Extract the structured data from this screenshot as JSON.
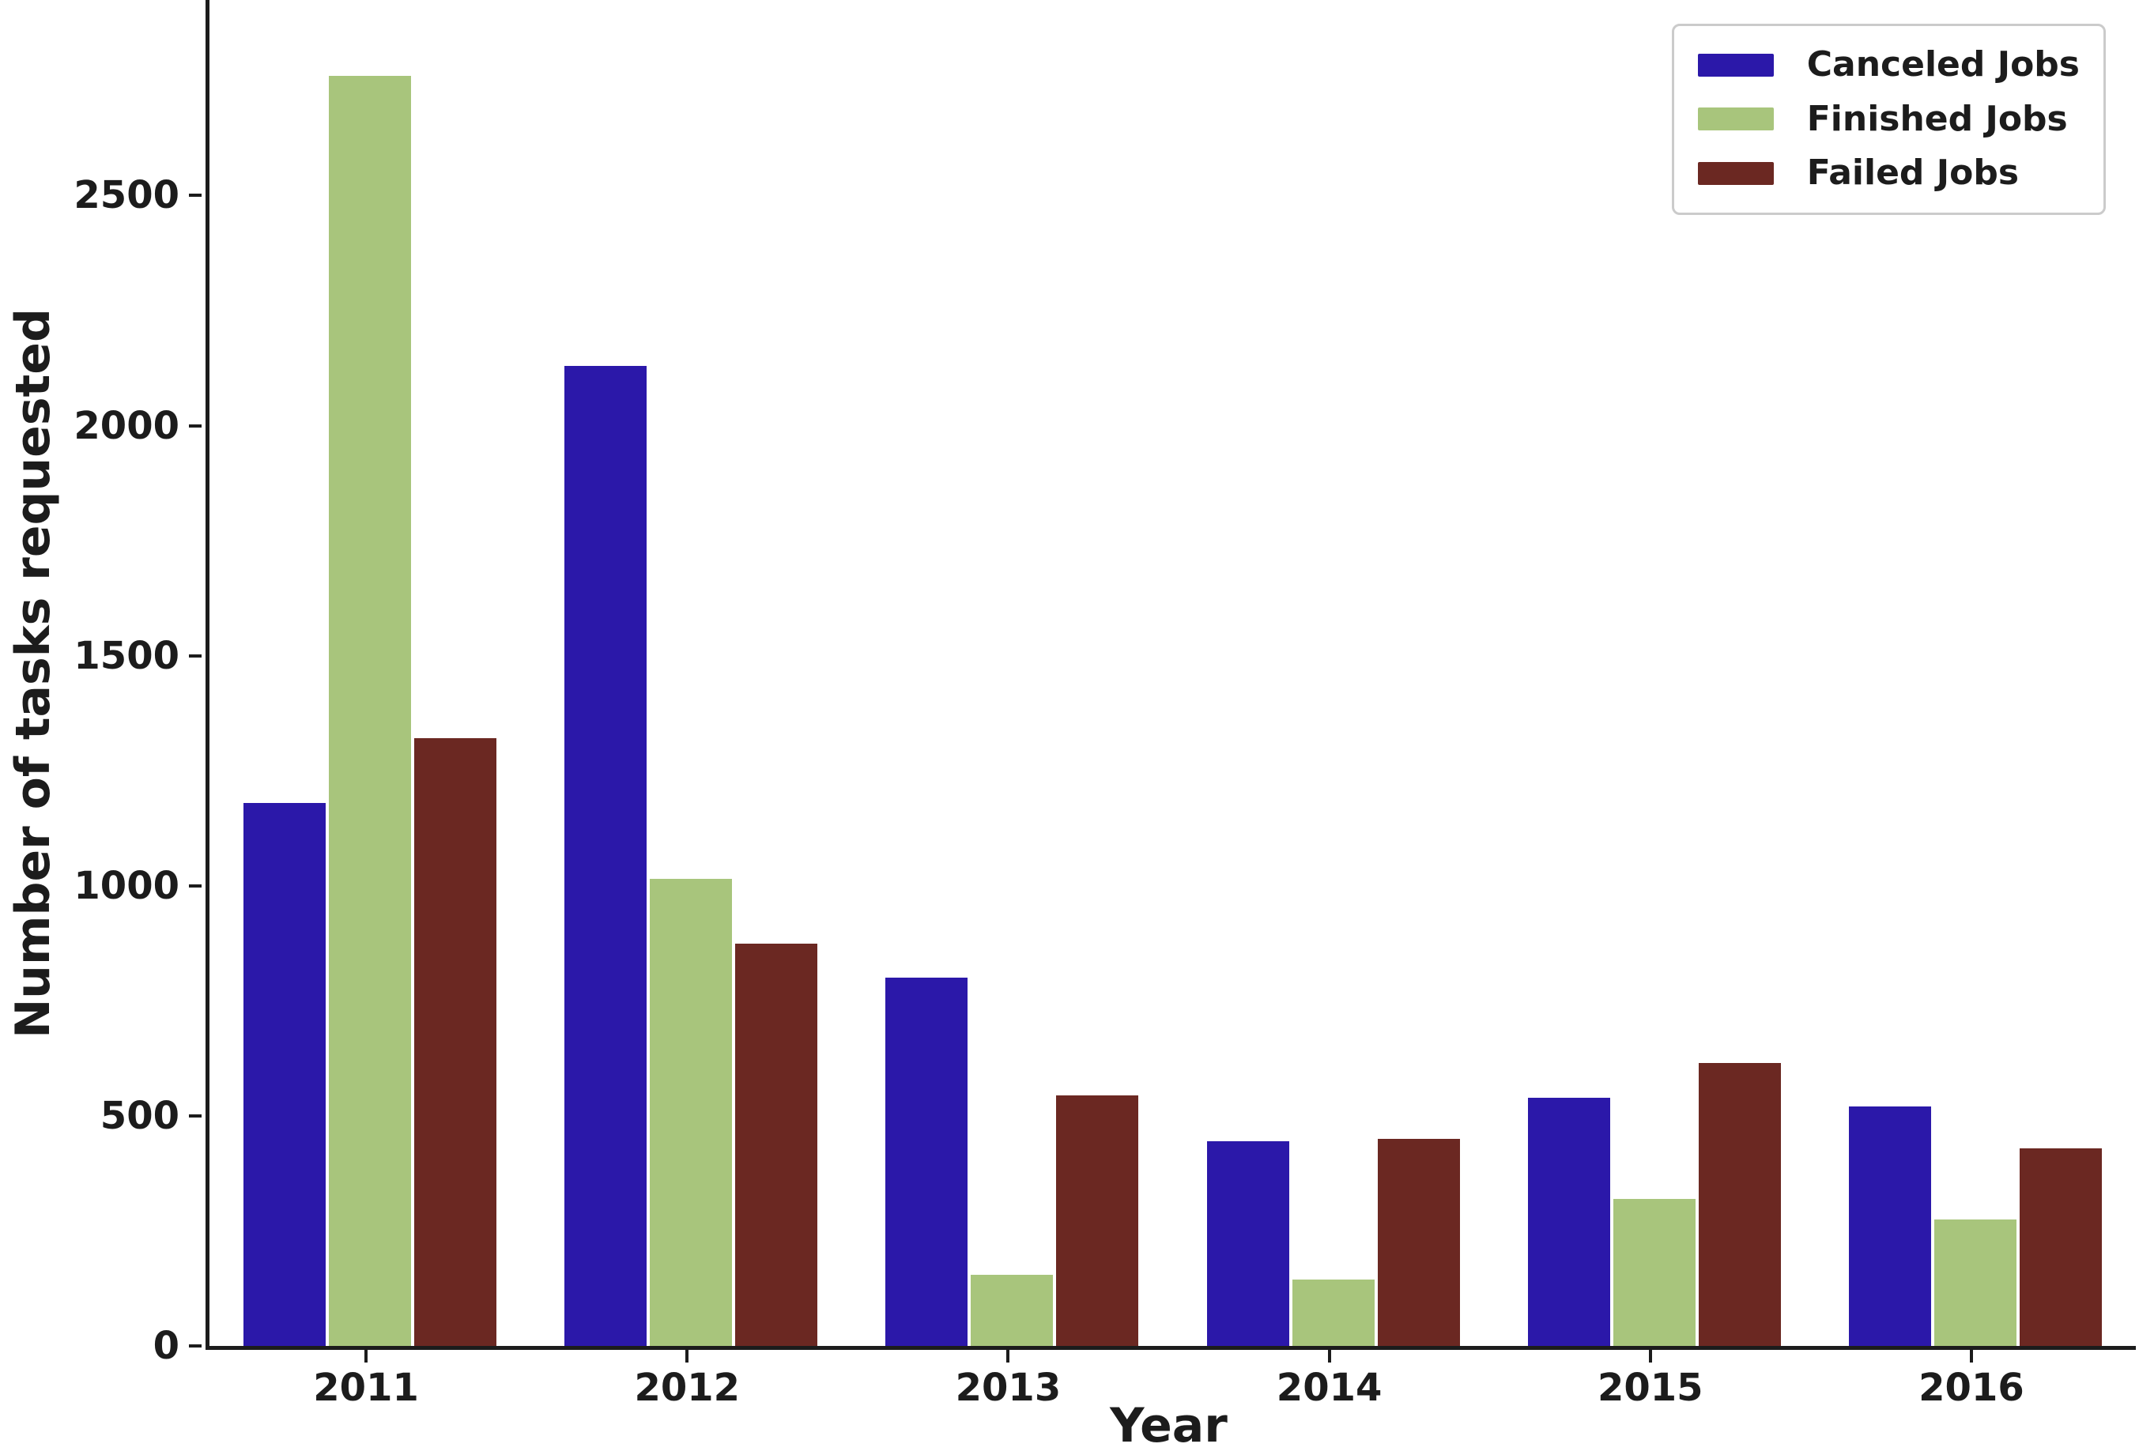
{
  "figure": {
    "background": "#ffffff",
    "text_color": "#1c1c1c",
    "axis_color": "#1c1c1c",
    "legend_border_color": "#cbcbcb"
  },
  "chart_data": {
    "type": "bar",
    "title": "",
    "xlabel": "Year",
    "ylabel": "Number of tasks requested",
    "categories": [
      "2011",
      "2012",
      "2013",
      "2014",
      "2015",
      "2016"
    ],
    "series": [
      {
        "name": "Canceled Jobs",
        "color": "#2b18a9",
        "values": [
          1180,
          2130,
          800,
          445,
          540,
          520
        ]
      },
      {
        "name": "Finished Jobs",
        "color": "#a8c57c",
        "values": [
          2760,
          1015,
          155,
          145,
          320,
          275
        ]
      },
      {
        "name": "Failed Jobs",
        "color": "#6b2822",
        "values": [
          1320,
          875,
          545,
          450,
          615,
          430
        ]
      }
    ],
    "ylim": [
      0,
      2925
    ],
    "yticks": [
      0,
      500,
      1000,
      1500,
      2000,
      2500
    ],
    "grid": false,
    "legend_position": "upper right"
  }
}
